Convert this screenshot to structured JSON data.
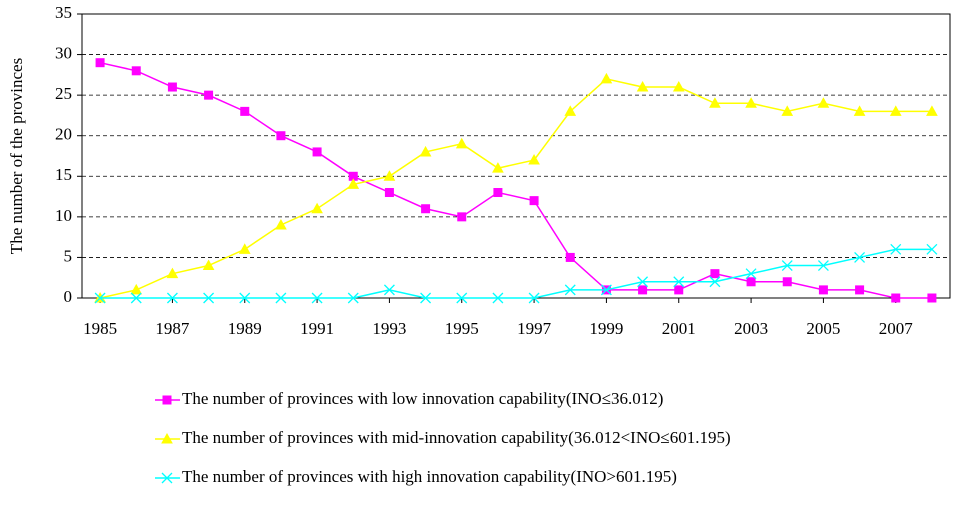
{
  "chart_data": {
    "type": "line",
    "ylabel": "The number of the provinces",
    "x": [
      1985,
      1986,
      1987,
      1988,
      1989,
      1990,
      1991,
      1992,
      1993,
      1994,
      1995,
      1996,
      1997,
      1998,
      1999,
      2000,
      2001,
      2002,
      2003,
      2004,
      2005,
      2006,
      2007,
      2008
    ],
    "xlim": [
      1984.5,
      2008.5
    ],
    "xticks": [
      1985,
      1987,
      1989,
      1991,
      1993,
      1995,
      1997,
      1999,
      2001,
      2003,
      2005,
      2007
    ],
    "ylim": [
      0,
      35
    ],
    "yticks": [
      0,
      5,
      10,
      15,
      20,
      25,
      30,
      35
    ],
    "grid": true,
    "legend": "bottom",
    "series": [
      {
        "name": "The number of provinces with low innovation capability(INO≤36.012)",
        "color": "#ff00ff",
        "marker": "square",
        "values": [
          29,
          28,
          26,
          25,
          23,
          20,
          18,
          15,
          13,
          11,
          10,
          13,
          12,
          5,
          1,
          1,
          1,
          3,
          2,
          2,
          1,
          1,
          0,
          0
        ]
      },
      {
        "name": "The number of provinces with mid-innovation capability(36.012<INO≤601.195)",
        "color": "#ffff00",
        "marker": "triangle",
        "values": [
          0,
          1,
          3,
          4,
          6,
          9,
          11,
          14,
          15,
          18,
          19,
          16,
          17,
          23,
          27,
          26,
          26,
          24,
          24,
          23,
          24,
          23,
          23,
          23
        ]
      },
      {
        "name": "The number of provinces with high innovation capability(INO>601.195)",
        "color": "#00ffff",
        "marker": "x",
        "values": [
          0,
          0,
          0,
          0,
          0,
          0,
          0,
          0,
          1,
          0,
          0,
          0,
          0,
          1,
          1,
          2,
          2,
          2,
          3,
          4,
          4,
          5,
          6,
          6
        ]
      }
    ]
  }
}
